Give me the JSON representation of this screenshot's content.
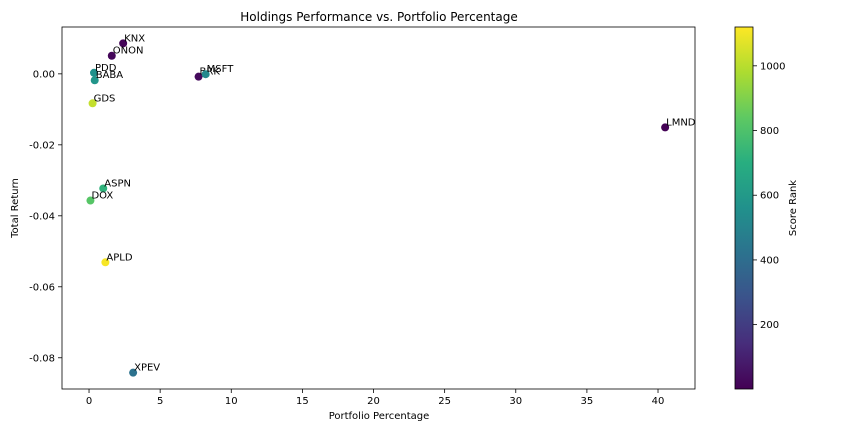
{
  "chart_data": {
    "type": "scatter",
    "title": "Holdings Performance vs. Portfolio Percentage",
    "xlabel": "Portfolio Percentage",
    "ylabel": "Total Return",
    "xlim": [
      -1.9,
      42.6
    ],
    "ylim": [
      -0.0888,
      0.0132
    ],
    "xticks": [
      0,
      5,
      10,
      15,
      20,
      25,
      30,
      35,
      40
    ],
    "yticks": [
      0.0,
      -0.02,
      -0.04,
      -0.06,
      -0.08
    ],
    "grid": false,
    "colorbar": {
      "label": "Score Rank",
      "range": [
        1,
        1120
      ],
      "ticks": [
        200,
        400,
        600,
        800,
        1000
      ],
      "colormap": "viridis"
    },
    "points": [
      {
        "label": "KNX",
        "x": 2.4,
        "y": 0.0086,
        "rank": 15
      },
      {
        "label": "ONON",
        "x": 1.6,
        "y": 0.0051,
        "rank": 20
      },
      {
        "label": "PDD",
        "x": 0.35,
        "y": 0.0003,
        "rank": 560
      },
      {
        "label": "BABA",
        "x": 0.4,
        "y": -0.0018,
        "rank": 580
      },
      {
        "label": "BRK",
        "x": 7.7,
        "y": -0.0008,
        "rank": 30
      },
      {
        "label": "MSFT",
        "x": 8.2,
        "y": -0.0001,
        "rank": 520
      },
      {
        "label": "GDS",
        "x": 0.25,
        "y": -0.0083,
        "rank": 1020
      },
      {
        "label": "LMND",
        "x": 40.5,
        "y": -0.0151,
        "rank": 5
      },
      {
        "label": "ASPN",
        "x": 1.0,
        "y": -0.0323,
        "rank": 720
      },
      {
        "label": "DOX",
        "x": 0.1,
        "y": -0.0357,
        "rank": 820
      },
      {
        "label": "APLD",
        "x": 1.15,
        "y": -0.0531,
        "rank": 1110
      },
      {
        "label": "XPEV",
        "x": 3.1,
        "y": -0.0842,
        "rank": 420
      }
    ]
  }
}
